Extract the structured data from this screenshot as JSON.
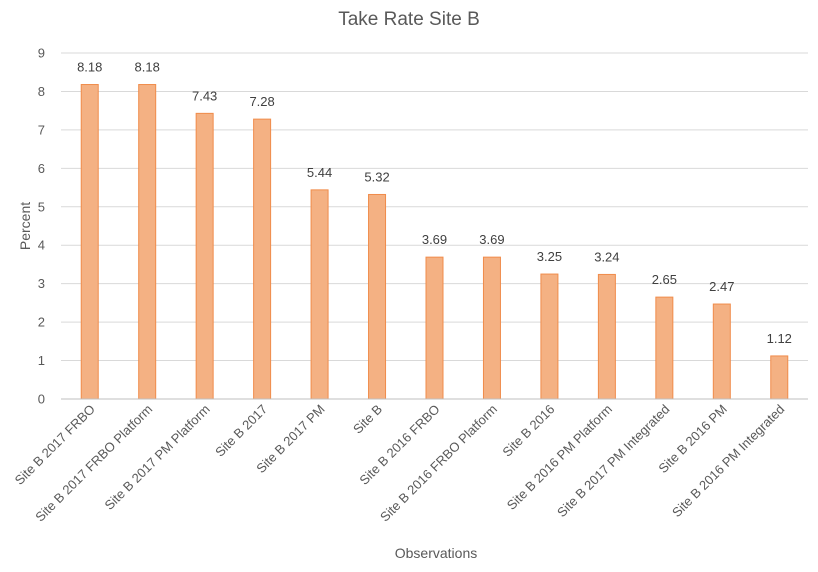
{
  "chart_data": {
    "type": "bar",
    "title": "Take Rate Site B",
    "xlabel": "Observations",
    "ylabel": "Percent",
    "ylim": [
      0,
      9
    ],
    "yticks": [
      0,
      1,
      2,
      3,
      4,
      5,
      6,
      7,
      8,
      9
    ],
    "grid": true,
    "legend": "none",
    "bar_color": "#f4b183",
    "bar_edge_color": "#f08c4b",
    "categories": [
      "Site B 2017 FRBO",
      "Site B 2017 FRBO Platform",
      "Site B 2017 PM Platform",
      "Site B 2017",
      "Site B 2017 PM",
      "Site B",
      "Site B 2016 FRBO",
      "Site B 2016 FRBO Platform",
      "Site B 2016",
      "Site B 2016 PM Platform",
      "Site B 2017 PM Integrated",
      "Site B 2016 PM",
      "Site B 2016 PM Integrated"
    ],
    "values": [
      8.18,
      8.18,
      7.43,
      7.28,
      5.44,
      5.32,
      3.69,
      3.69,
      3.25,
      3.24,
      2.65,
      2.47,
      1.12
    ],
    "data_labels": [
      "8.18",
      "8.18",
      "7.43",
      "7.28",
      "5.44",
      "5.32",
      "3.69",
      "3.69",
      "3.25",
      "3.24",
      "2.65",
      "2.47",
      "1.12"
    ]
  }
}
